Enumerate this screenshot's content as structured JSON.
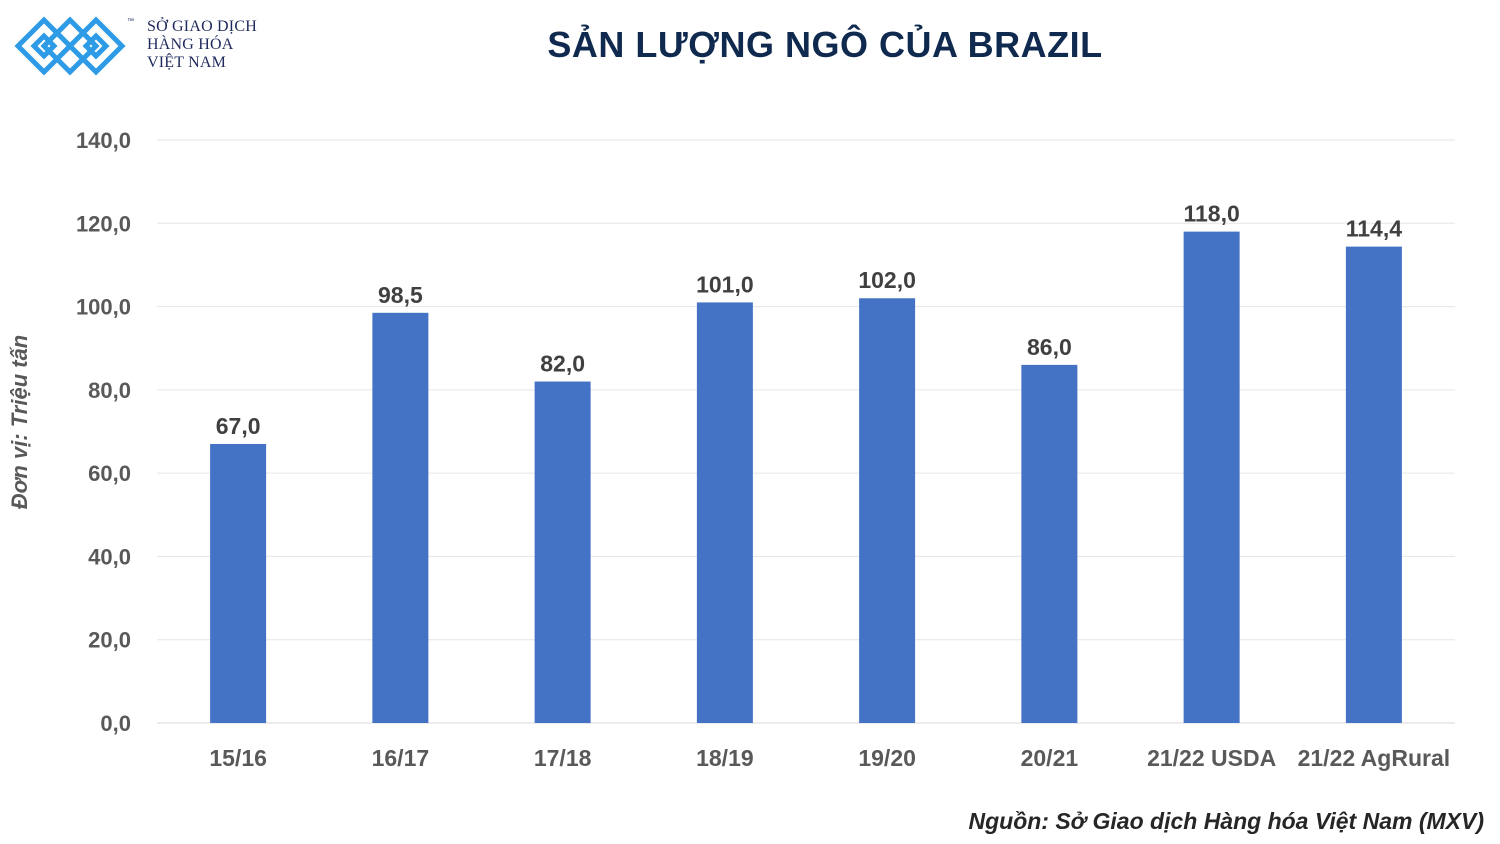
{
  "logo": {
    "line1": "SỞ GIAO DỊCH",
    "line2": "HÀNG HÓA",
    "line3": "VIỆT NAM",
    "tm": "™",
    "color": "#2e9be6"
  },
  "chart_data": {
    "type": "bar",
    "title": "SẢN LƯỢNG NGÔ CỦA BRAZIL",
    "ylabel": "Đơn vị: Triệu tấn",
    "xlabel": "",
    "categories": [
      "15/16",
      "16/17",
      "17/18",
      "18/19",
      "19/20",
      "20/21",
      "21/22 USDA",
      "21/22 AgRural"
    ],
    "values": [
      67.0,
      98.5,
      82.0,
      101.0,
      102.0,
      86.0,
      118.0,
      114.4
    ],
    "value_labels": [
      "67,0",
      "98,5",
      "82,0",
      "101,0",
      "102,0",
      "86,0",
      "118,0",
      "114,4"
    ],
    "ylim": [
      0,
      140
    ],
    "yticks": [
      0,
      20,
      40,
      60,
      80,
      100,
      120,
      140
    ],
    "ytick_labels": [
      "0,0",
      "20,0",
      "40,0",
      "60,0",
      "80,0",
      "100,0",
      "120,0",
      "140,0"
    ],
    "grid": true,
    "bar_color": "#4472c4"
  },
  "source": "Nguồn: Sở Giao dịch Hàng hóa Việt Nam (MXV)"
}
